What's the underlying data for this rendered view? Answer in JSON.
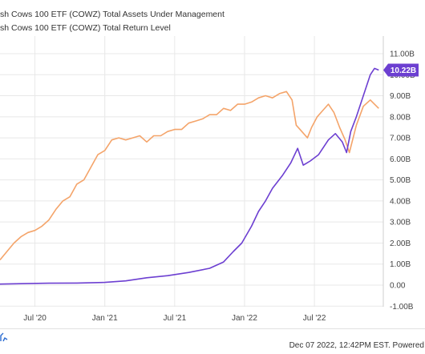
{
  "legend": [
    {
      "label": "sh Cows 100 ETF (COWZ) Total Assets Under Management",
      "color": "#6c3fd1"
    },
    {
      "label": "sh Cows 100 ETF (COWZ) Total Return Level",
      "color": "#f4a46a"
    }
  ],
  "footer": {
    "timestamp": "Dec 07 2022, 12:42PM EST. Powered"
  },
  "callout": {
    "label": "10.22B",
    "color": "#6c3fd1"
  },
  "chart_data": {
    "type": "line",
    "y_ticks": [
      "11.00B",
      "10.00B",
      "9.00B",
      "8.00B",
      "7.00B",
      "6.00B",
      "5.00B",
      "4.00B",
      "3.00B",
      "2.00B",
      "1.00B",
      "0.00",
      "-1.00B"
    ],
    "x_ticks": [
      {
        "label": "Jul '20",
        "x": 2020.5
      },
      {
        "label": "Jan '21",
        "x": 2021.0
      },
      {
        "label": "Jul '21",
        "x": 2021.5
      },
      {
        "label": "Jan '22",
        "x": 2022.0
      },
      {
        "label": "Jul '22",
        "x": 2022.5
      }
    ],
    "ylim": [
      -1,
      11.5
    ],
    "xlim": [
      2020.25,
      2022.97
    ],
    "grid": true,
    "series": [
      {
        "name": "Total Assets Under Management",
        "color": "#6c3fd1",
        "points": [
          [
            2020.25,
            0.05
          ],
          [
            2020.4,
            0.07
          ],
          [
            2020.6,
            0.09
          ],
          [
            2020.8,
            0.1
          ],
          [
            2021.0,
            0.13
          ],
          [
            2021.15,
            0.2
          ],
          [
            2021.3,
            0.35
          ],
          [
            2021.45,
            0.45
          ],
          [
            2021.6,
            0.6
          ],
          [
            2021.75,
            0.8
          ],
          [
            2021.85,
            1.1
          ],
          [
            2021.92,
            1.6
          ],
          [
            2021.98,
            2.0
          ],
          [
            2022.05,
            2.8
          ],
          [
            2022.1,
            3.5
          ],
          [
            2022.15,
            4.0
          ],
          [
            2022.2,
            4.6
          ],
          [
            2022.27,
            5.2
          ],
          [
            2022.33,
            5.8
          ],
          [
            2022.38,
            6.5
          ],
          [
            2022.42,
            5.7
          ],
          [
            2022.47,
            5.9
          ],
          [
            2022.53,
            6.2
          ],
          [
            2022.6,
            6.9
          ],
          [
            2022.65,
            7.2
          ],
          [
            2022.7,
            6.8
          ],
          [
            2022.73,
            6.3
          ],
          [
            2022.76,
            7.3
          ],
          [
            2022.8,
            8.0
          ],
          [
            2022.85,
            9.0
          ],
          [
            2022.9,
            10.0
          ],
          [
            2022.93,
            10.3
          ],
          [
            2022.96,
            10.22
          ]
        ]
      },
      {
        "name": "Total Return Level",
        "color": "#f4a46a",
        "points": [
          [
            2020.25,
            1.2
          ],
          [
            2020.3,
            1.6
          ],
          [
            2020.35,
            2.0
          ],
          [
            2020.4,
            2.3
          ],
          [
            2020.45,
            2.5
          ],
          [
            2020.5,
            2.6
          ],
          [
            2020.55,
            2.8
          ],
          [
            2020.6,
            3.1
          ],
          [
            2020.65,
            3.6
          ],
          [
            2020.7,
            4.0
          ],
          [
            2020.75,
            4.2
          ],
          [
            2020.8,
            4.8
          ],
          [
            2020.85,
            5.0
          ],
          [
            2020.9,
            5.6
          ],
          [
            2020.95,
            6.2
          ],
          [
            2021.0,
            6.4
          ],
          [
            2021.05,
            6.9
          ],
          [
            2021.1,
            7.0
          ],
          [
            2021.15,
            6.9
          ],
          [
            2021.2,
            7.0
          ],
          [
            2021.25,
            7.1
          ],
          [
            2021.3,
            6.8
          ],
          [
            2021.35,
            7.1
          ],
          [
            2021.4,
            7.1
          ],
          [
            2021.45,
            7.3
          ],
          [
            2021.5,
            7.4
          ],
          [
            2021.55,
            7.4
          ],
          [
            2021.6,
            7.7
          ],
          [
            2021.65,
            7.8
          ],
          [
            2021.7,
            7.9
          ],
          [
            2021.75,
            8.1
          ],
          [
            2021.8,
            8.1
          ],
          [
            2021.85,
            8.4
          ],
          [
            2021.9,
            8.3
          ],
          [
            2021.95,
            8.6
          ],
          [
            2022.0,
            8.6
          ],
          [
            2022.05,
            8.7
          ],
          [
            2022.1,
            8.9
          ],
          [
            2022.15,
            9.0
          ],
          [
            2022.2,
            8.9
          ],
          [
            2022.25,
            9.1
          ],
          [
            2022.3,
            9.2
          ],
          [
            2022.34,
            8.8
          ],
          [
            2022.37,
            7.6
          ],
          [
            2022.41,
            7.3
          ],
          [
            2022.45,
            7.0
          ],
          [
            2022.48,
            7.5
          ],
          [
            2022.52,
            8.0
          ],
          [
            2022.56,
            8.3
          ],
          [
            2022.6,
            8.6
          ],
          [
            2022.64,
            8.2
          ],
          [
            2022.68,
            7.5
          ],
          [
            2022.72,
            6.9
          ],
          [
            2022.75,
            6.3
          ],
          [
            2022.8,
            7.6
          ],
          [
            2022.85,
            8.5
          ],
          [
            2022.9,
            8.8
          ],
          [
            2022.93,
            8.6
          ],
          [
            2022.96,
            8.4
          ]
        ]
      }
    ]
  }
}
